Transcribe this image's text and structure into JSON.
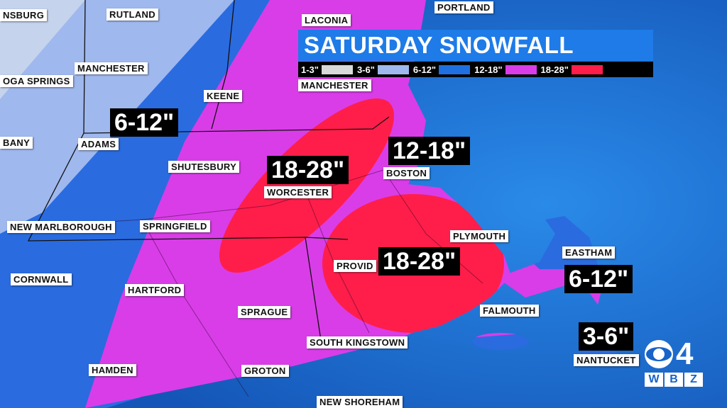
{
  "title": "SATURDAY SNOWFALL",
  "legend": [
    {
      "label": "1-3\"",
      "color": "#d9d9d9"
    },
    {
      "label": "3-6\"",
      "color": "#9fb8ee"
    },
    {
      "label": "6-12\"",
      "color": "#1f6fe0"
    },
    {
      "label": "12-18\"",
      "color": "#d93de8"
    },
    {
      "label": "18-28\"",
      "color": "#ff1e4a"
    }
  ],
  "towns": [
    "NSBURG",
    "RUTLAND",
    "LACONIA",
    "PORTLAND",
    "MANCHESTER",
    "OGA SPRINGS",
    "KEENE",
    "MANCHESTER",
    "BANY",
    "ADAMS",
    "SHUTESBURY",
    "BOSTON",
    "WORCESTER",
    "NEW MARLBOROUGH",
    "SPRINGFIELD",
    "PLYMOUTH",
    "EASTHAM",
    "PROVID",
    "CORNWALL",
    "HARTFORD",
    "SPRAGUE",
    "FALMOUTH",
    "SOUTH KINGSTOWN",
    "NANTUCKET",
    "HAMDEN",
    "GROTON",
    "NEW SHOREHAM"
  ],
  "amounts": [
    "6-12\"",
    "18-28\"",
    "12-18\"",
    "18-28\"",
    "6-12\"",
    "3-6\""
  ],
  "logo": {
    "network": "4",
    "station": [
      "W",
      "B",
      "Z"
    ]
  }
}
